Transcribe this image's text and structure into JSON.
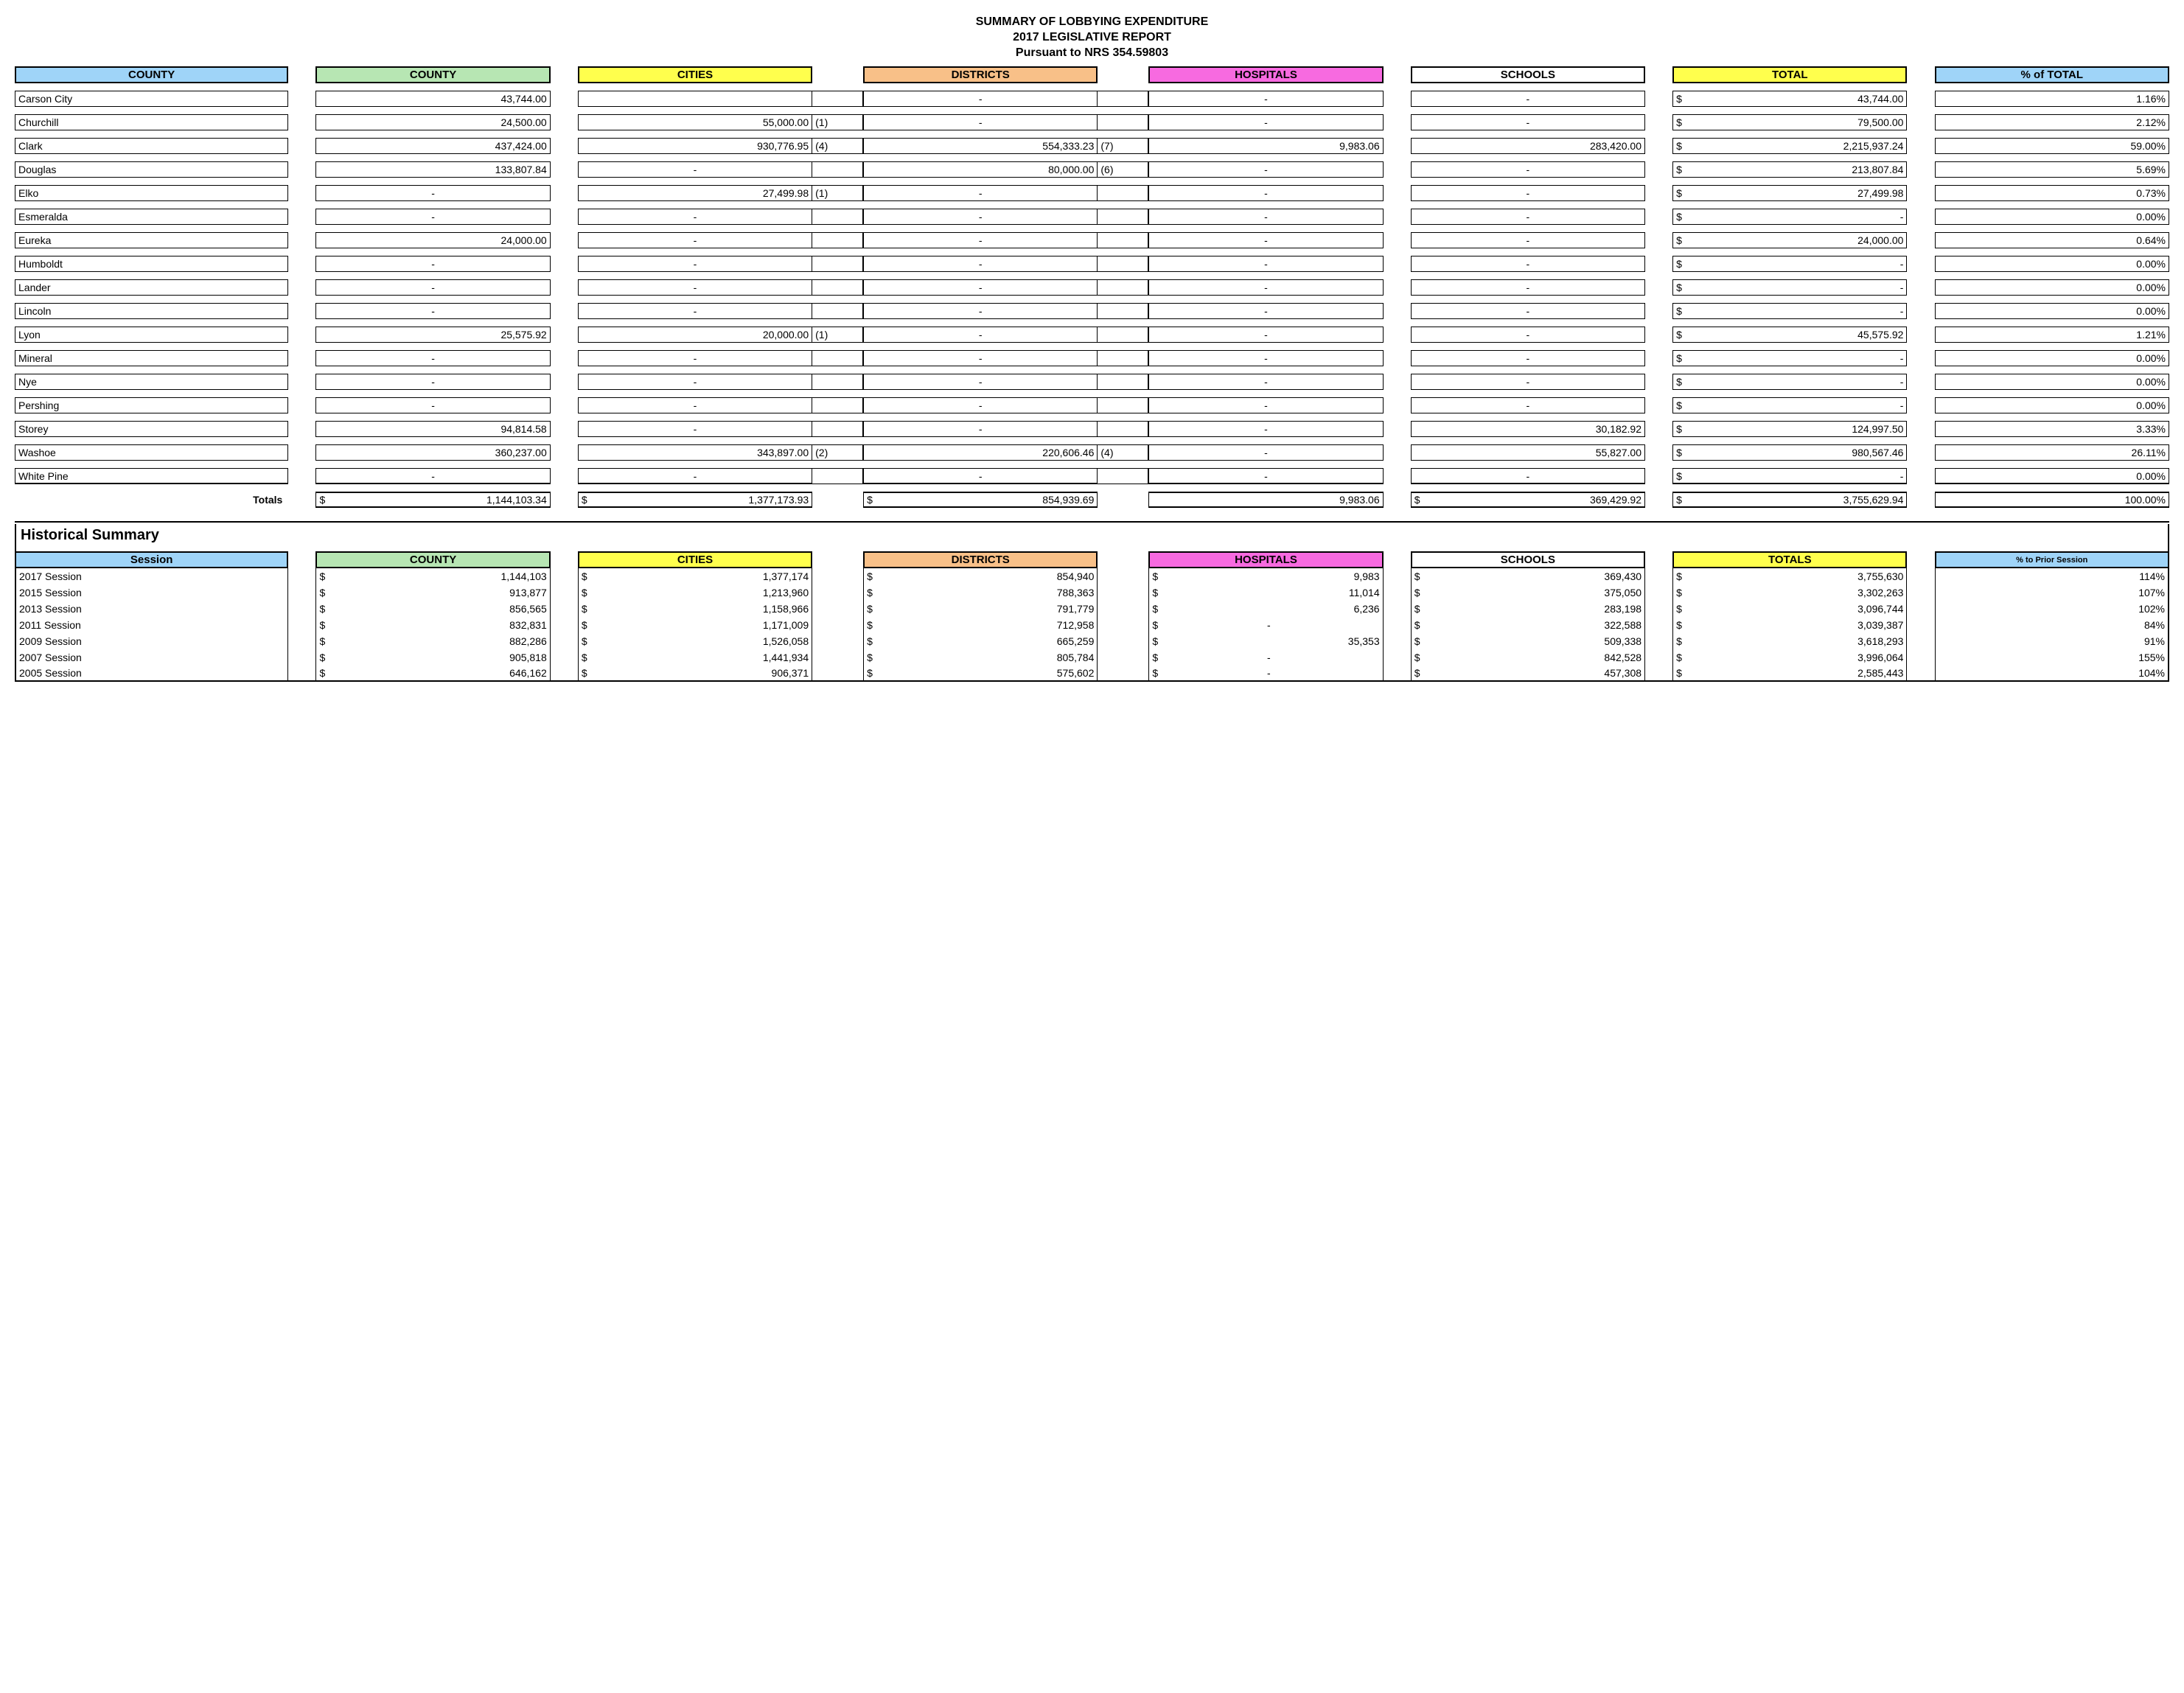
{
  "title": {
    "line1": "SUMMARY OF LOBBYING EXPENDITURE",
    "line2": "2017 LEGISLATIVE REPORT",
    "line3": "Pursuant to NRS 354.59803"
  },
  "headers": {
    "county_name": "COUNTY",
    "county": "COUNTY",
    "cities": "CITIES",
    "districts": "DISTRICTS",
    "hospitals": "HOSPITALS",
    "schools": "SCHOOLS",
    "total": "TOTAL",
    "pct_total": "% of TOTAL"
  },
  "header_colors": {
    "county_name": "#9fd4f8",
    "county": "#b7e6b3",
    "cities": "#ffff4d",
    "districts": "#f8c088",
    "hospitals": "#f76ae0",
    "schools": "#ffffff",
    "total": "#ffff4d",
    "pct_total": "#9fd4f8"
  },
  "rows": [
    {
      "name": "Carson City",
      "county": "43,744.00",
      "cities": "",
      "cities_note": "",
      "districts": "-",
      "districts_note": "",
      "hospitals": "-",
      "schools": "-",
      "total_s": "$",
      "total": "43,744.00",
      "pct": "1.16%"
    },
    {
      "name": "Churchill",
      "county": "24,500.00",
      "cities": "55,000.00",
      "cities_note": "(1)",
      "districts": "-",
      "districts_note": "",
      "hospitals": "-",
      "schools": "-",
      "total_s": "$",
      "total": "79,500.00",
      "pct": "2.12%"
    },
    {
      "name": "Clark",
      "county": "437,424.00",
      "cities": "930,776.95",
      "cities_note": "(4)",
      "districts": "554,333.23",
      "districts_note": "(7)",
      "hospitals": "9,983.06",
      "schools": "283,420.00",
      "total_s": "$",
      "total": "2,215,937.24",
      "pct": "59.00%"
    },
    {
      "name": "Douglas",
      "county": "133,807.84",
      "cities": "-",
      "cities_note": "",
      "districts": "80,000.00",
      "districts_note": "(6)",
      "hospitals": "-",
      "schools": "-",
      "total_s": "$",
      "total": "213,807.84",
      "pct": "5.69%"
    },
    {
      "name": "Elko",
      "county": "-",
      "cities": "27,499.98",
      "cities_note": "(1)",
      "districts": "-",
      "districts_note": "",
      "hospitals": "-",
      "schools": "-",
      "total_s": "$",
      "total": "27,499.98",
      "pct": "0.73%"
    },
    {
      "name": "Esmeralda",
      "county": "-",
      "cities": "-",
      "cities_note": "",
      "districts": "-",
      "districts_note": "",
      "hospitals": "-",
      "schools": "-",
      "total_s": "$",
      "total": "-",
      "pct": "0.00%"
    },
    {
      "name": "Eureka",
      "county": "24,000.00",
      "cities": "-",
      "cities_note": "",
      "districts": "-",
      "districts_note": "",
      "hospitals": "-",
      "schools": "-",
      "total_s": "$",
      "total": "24,000.00",
      "pct": "0.64%"
    },
    {
      "name": "Humboldt",
      "county": "-",
      "cities": "-",
      "cities_note": "",
      "districts": "-",
      "districts_note": "",
      "hospitals": "-",
      "schools": "-",
      "total_s": "$",
      "total": "-",
      "pct": "0.00%"
    },
    {
      "name": "Lander",
      "county": "-",
      "cities": "-",
      "cities_note": "",
      "districts": "-",
      "districts_note": "",
      "hospitals": "-",
      "schools": "-",
      "total_s": "$",
      "total": "-",
      "pct": "0.00%"
    },
    {
      "name": "Lincoln",
      "county": "-",
      "cities": "-",
      "cities_note": "",
      "districts": "-",
      "districts_note": "",
      "hospitals": "-",
      "schools": "-",
      "total_s": "$",
      "total": "-",
      "pct": "0.00%"
    },
    {
      "name": "Lyon",
      "county": "25,575.92",
      "cities": "20,000.00",
      "cities_note": "(1)",
      "districts": "-",
      "districts_note": "",
      "hospitals": "-",
      "schools": "-",
      "total_s": "$",
      "total": "45,575.92",
      "pct": "1.21%"
    },
    {
      "name": "Mineral",
      "county": "-",
      "cities": "-",
      "cities_note": "",
      "districts": "-",
      "districts_note": "",
      "hospitals": "-",
      "schools": "-",
      "total_s": "$",
      "total": "-",
      "pct": "0.00%"
    },
    {
      "name": "Nye",
      "county": "-",
      "cities": "-",
      "cities_note": "",
      "districts": "-",
      "districts_note": "",
      "hospitals": "-",
      "schools": "-",
      "total_s": "$",
      "total": "-",
      "pct": "0.00%"
    },
    {
      "name": "Pershing",
      "county": "-",
      "cities": "-",
      "cities_note": "",
      "districts": "-",
      "districts_note": "",
      "hospitals": "-",
      "schools": "-",
      "total_s": "$",
      "total": "-",
      "pct": "0.00%"
    },
    {
      "name": "Storey",
      "county": "94,814.58",
      "cities": "-",
      "cities_note": "",
      "districts": "-",
      "districts_note": "",
      "hospitals": "-",
      "schools": "30,182.92",
      "total_s": "$",
      "total": "124,997.50",
      "pct": "3.33%"
    },
    {
      "name": "Washoe",
      "county": "360,237.00",
      "cities": "343,897.00",
      "cities_note": "(2)",
      "districts": "220,606.46",
      "districts_note": "(4)",
      "hospitals": "-",
      "schools": "55,827.00",
      "total_s": "$",
      "total": "980,567.46",
      "pct": "26.11%"
    },
    {
      "name": "White Pine",
      "county": "-",
      "cities": "-",
      "cities_note": "",
      "districts": "-",
      "districts_note": "",
      "hospitals": "-",
      "schools": "-",
      "total_s": "$",
      "total": "-",
      "pct": "0.00%"
    }
  ],
  "totals": {
    "label": "Totals",
    "county": "1,144,103.34",
    "county_s": "$",
    "cities": "1,377,173.93",
    "cities_s": "$",
    "districts": "854,939.69",
    "districts_s": "$",
    "hospitals": "9,983.06",
    "hospitals_s": "",
    "schools": "369,429.92",
    "schools_s": "$",
    "total": "3,755,629.94",
    "total_s": "$",
    "pct": "100.00%"
  },
  "historical": {
    "title": "Historical Summary",
    "headers": {
      "session": "Session",
      "county": "COUNTY",
      "cities": "CITIES",
      "districts": "DISTRICTS",
      "hospitals": "HOSPITALS",
      "schools": "SCHOOLS",
      "totals": "TOTALS",
      "pct": "% to Prior Session"
    },
    "rows": [
      {
        "session": "2017 Session",
        "county": "1,144,103",
        "cities": "1,377,174",
        "districts": "854,940",
        "hospitals": "9,983",
        "schools": "369,430",
        "totals": "3,755,630",
        "pct": "114%"
      },
      {
        "session": "2015 Session",
        "county": "913,877",
        "cities": "1,213,960",
        "districts": "788,363",
        "hospitals": "11,014",
        "schools": "375,050",
        "totals": "3,302,263",
        "pct": "107%"
      },
      {
        "session": "2013 Session",
        "county": "856,565",
        "cities": "1,158,966",
        "districts": "791,779",
        "hospitals": "6,236",
        "schools": "283,198",
        "totals": "3,096,744",
        "pct": "102%"
      },
      {
        "session": "2011 Session",
        "county": "832,831",
        "cities": "1,171,009",
        "districts": "712,958",
        "hospitals": "-",
        "schools": "322,588",
        "totals": "3,039,387",
        "pct": "84%"
      },
      {
        "session": "2009 Session",
        "county": "882,286",
        "cities": "1,526,058",
        "districts": "665,259",
        "hospitals": "35,353",
        "schools": "509,338",
        "totals": "3,618,293",
        "pct": "91%"
      },
      {
        "session": "2007 Session",
        "county": "905,818",
        "cities": "1,441,934",
        "districts": "805,784",
        "hospitals": "-",
        "schools": "842,528",
        "totals": "3,996,064",
        "pct": "155%"
      },
      {
        "session": "2005 Session",
        "county": "646,162",
        "cities": "906,371",
        "districts": "575,602",
        "hospitals": "-",
        "schools": "457,308",
        "totals": "2,585,443",
        "pct": "104%"
      }
    ]
  }
}
